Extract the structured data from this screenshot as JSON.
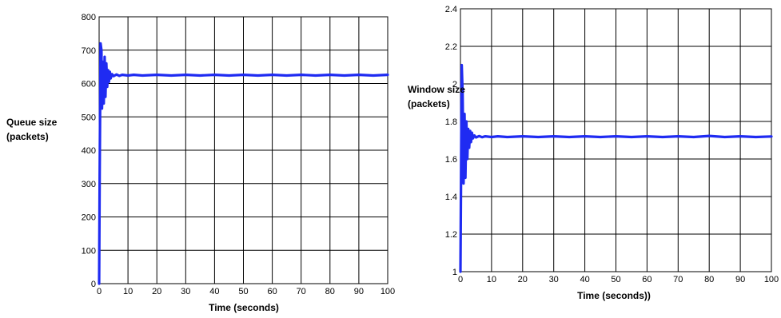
{
  "colors": {
    "series": "#1f2bf2",
    "grid": "#000000",
    "background": "#ffffff"
  },
  "chart_data": [
    {
      "type": "line",
      "title": "",
      "xlabel": "Time (seconds)",
      "ylabel_line1": "Queue size",
      "ylabel_line2": "(packets)",
      "xlim": [
        0,
        100
      ],
      "ylim": [
        0,
        800
      ],
      "xticks": [
        "0",
        "10",
        "20",
        "30",
        "40",
        "50",
        "60",
        "70",
        "80",
        "90",
        "100"
      ],
      "yticks": [
        "0",
        "100",
        "200",
        "300",
        "400",
        "500",
        "600",
        "700",
        "800"
      ],
      "grid": true,
      "series": [
        {
          "x": [
            0,
            0.2,
            0.5,
            0.8,
            1.0,
            1.3,
            1.6,
            1.9,
            2.2,
            2.5,
            2.8,
            3.1,
            3.4,
            3.7,
            4.0,
            4.5,
            5,
            6,
            7,
            8,
            10,
            12,
            15,
            20,
            25,
            30,
            35,
            40,
            45,
            50,
            55,
            60,
            65,
            70,
            75,
            80,
            85,
            90,
            95,
            100
          ],
          "y": [
            0,
            330,
            720,
            700,
            525,
            665,
            540,
            680,
            560,
            660,
            590,
            640,
            605,
            635,
            615,
            628,
            622,
            627,
            623,
            626,
            624,
            626,
            624,
            626,
            624,
            626,
            624,
            626,
            624,
            626,
            624,
            626,
            624,
            626,
            624,
            626,
            624,
            626,
            624,
            626
          ]
        }
      ]
    },
    {
      "type": "line",
      "title": "",
      "xlabel": "Time (seconds))",
      "ylabel_line1": "Window size",
      "ylabel_line2": "(packets)",
      "xlim": [
        0,
        100
      ],
      "ylim": [
        1,
        2.4
      ],
      "xticks": [
        "0",
        "10",
        "20",
        "30",
        "40",
        "50",
        "60",
        "70",
        "80",
        "90",
        "100"
      ],
      "yticks": [
        "1",
        "1.2",
        "1.4",
        "1.6",
        "1.8",
        "2",
        "2.2",
        "2.4"
      ],
      "grid": true,
      "series": [
        {
          "x": [
            0,
            0.2,
            0.4,
            0.7,
            1.0,
            1.3,
            1.6,
            1.9,
            2.2,
            2.5,
            2.8,
            3.1,
            3.4,
            3.7,
            4.0,
            4.5,
            5,
            6,
            7,
            8,
            10,
            12,
            15,
            20,
            25,
            30,
            35,
            40,
            45,
            50,
            55,
            60,
            65,
            70,
            75,
            80,
            85,
            90,
            95,
            100
          ],
          "y": [
            1.0,
            1.55,
            2.1,
            1.95,
            1.47,
            1.84,
            1.5,
            1.8,
            1.6,
            1.76,
            1.66,
            1.75,
            1.69,
            1.74,
            1.71,
            1.725,
            1.715,
            1.722,
            1.716,
            1.721,
            1.717,
            1.721,
            1.717,
            1.721,
            1.717,
            1.721,
            1.717,
            1.721,
            1.717,
            1.721,
            1.717,
            1.721,
            1.717,
            1.721,
            1.717,
            1.723,
            1.717,
            1.721,
            1.717,
            1.72
          ]
        }
      ]
    }
  ]
}
